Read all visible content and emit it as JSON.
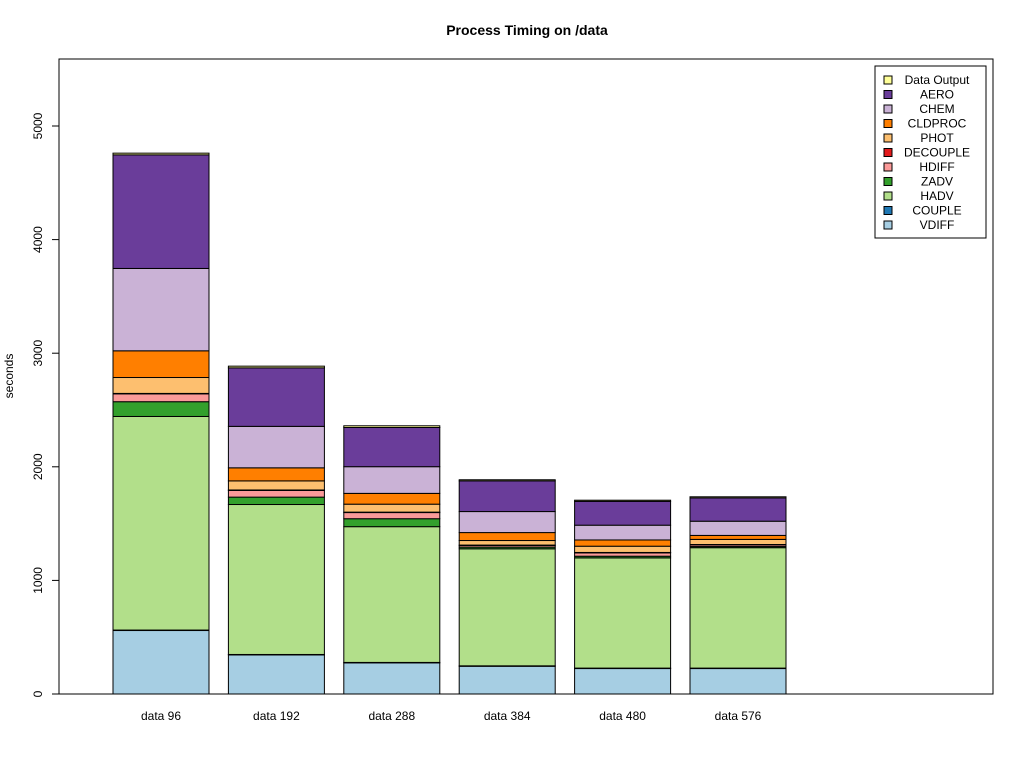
{
  "chart_data": {
    "type": "bar",
    "stacked": true,
    "title": "Process Timing on /data",
    "xlabel": "",
    "ylabel": "seconds",
    "ylim": [
      0,
      5600
    ],
    "yticks": [
      0,
      1000,
      2000,
      3000,
      4000,
      5000
    ],
    "grid": false,
    "legend_position": "top-right",
    "categories": [
      "data 96",
      "data 192",
      "data 288",
      "data 384",
      "data 480",
      "data 576"
    ],
    "series": [
      {
        "name": "VDIFF",
        "color": "#a6cee3",
        "values": [
          560,
          345,
          275,
          245,
          225,
          225
        ]
      },
      {
        "name": "COUPLE",
        "color": "#1f78b4",
        "values": [
          3,
          3,
          3,
          3,
          3,
          3
        ]
      },
      {
        "name": "HADV",
        "color": "#b2df8a",
        "values": [
          1880,
          1320,
          1195,
          1030,
          970,
          1060
        ]
      },
      {
        "name": "ZADV",
        "color": "#33a02c",
        "values": [
          130,
          65,
          70,
          15,
          15,
          10
        ]
      },
      {
        "name": "HDIFF",
        "color": "#fb9a99",
        "values": [
          70,
          60,
          55,
          15,
          30,
          15
        ]
      },
      {
        "name": "DECOUPLE",
        "color": "#e31a1c",
        "values": [
          3,
          3,
          3,
          3,
          3,
          3
        ]
      },
      {
        "name": "PHOT",
        "color": "#fdbf6f",
        "values": [
          140,
          80,
          70,
          40,
          55,
          45
        ]
      },
      {
        "name": "CLDPROC",
        "color": "#ff7f00",
        "values": [
          235,
          115,
          95,
          70,
          55,
          35
        ]
      },
      {
        "name": "CHEM",
        "color": "#cab2d6",
        "values": [
          725,
          365,
          235,
          185,
          130,
          125
        ]
      },
      {
        "name": "AERO",
        "color": "#6a3d9a",
        "values": [
          1000,
          515,
          345,
          270,
          210,
          205
        ]
      },
      {
        "name": "Data Output",
        "color": "#ffff99",
        "values": [
          15,
          15,
          15,
          10,
          10,
          10
        ]
      }
    ]
  }
}
